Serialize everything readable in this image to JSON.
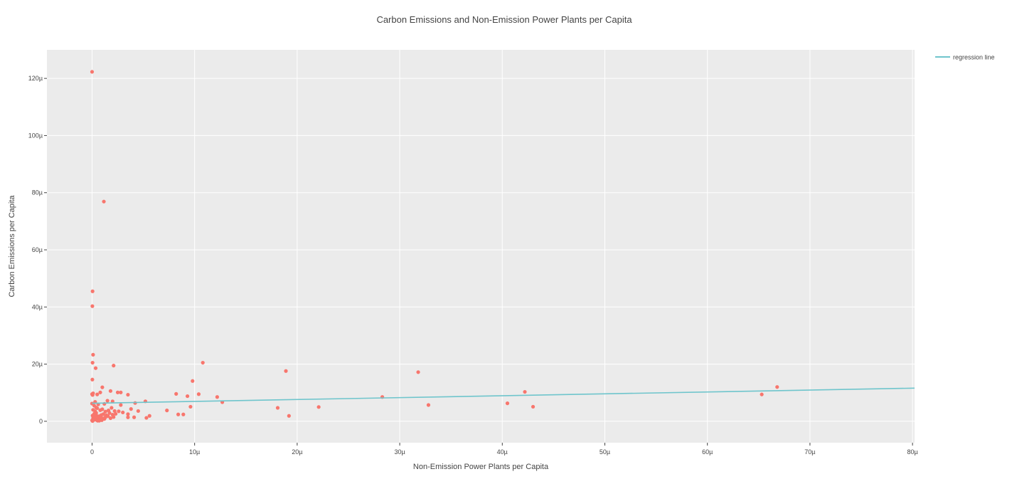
{
  "chart_data": {
    "type": "scatter",
    "title": "Carbon Emissions and Non-Emission Power Plants per Capita",
    "xlabel": "Non-Emission Power Plants per Capita",
    "ylabel": "Carbon Emissions per Capita",
    "xlim": [
      -4.4,
      80.2
    ],
    "ylim": [
      -7.5,
      130
    ],
    "x_ticks": [
      0,
      10,
      20,
      30,
      40,
      50,
      60,
      70,
      80
    ],
    "x_tick_labels": [
      "0",
      "10µ",
      "20µ",
      "30µ",
      "40µ",
      "50µ",
      "60µ",
      "70µ",
      "80µ"
    ],
    "y_ticks": [
      0,
      20,
      40,
      60,
      80,
      100,
      120
    ],
    "y_tick_labels": [
      "0",
      "20µ",
      "40µ",
      "60µ",
      "80µ",
      "100µ",
      "120µ"
    ],
    "grid": true,
    "legend_position": "top-right",
    "colors": {
      "points": "#f8766d",
      "regression": "#6fc5cc",
      "plot_bg": "#ebebeb",
      "grid": "#ffffff"
    },
    "series": [
      {
        "kind": "points",
        "x": [
          0.0,
          0.05,
          0.03,
          0.1,
          0.05,
          0.03,
          1.15,
          0.35,
          2.1,
          0.0,
          0.05,
          0.1,
          0.0,
          0.3,
          0.5,
          0.8,
          1.0,
          1.8,
          2.5,
          2.8,
          3.5,
          0.2,
          0.4,
          0.6,
          1.2,
          1.5,
          2.0,
          2.8,
          4.2,
          5.2,
          0.1,
          0.3,
          0.5,
          0.8,
          1.0,
          1.3,
          1.6,
          1.9,
          2.2,
          2.6,
          3.0,
          3.5,
          3.8,
          4.5,
          0.05,
          0.2,
          0.4,
          0.7,
          0.9,
          1.1,
          1.4,
          1.7,
          2.0,
          2.3,
          0.1,
          0.25,
          0.45,
          0.6,
          0.85,
          1.05,
          1.3,
          1.55,
          1.8,
          2.1,
          0.0,
          0.15,
          0.35,
          0.55,
          0.75,
          0.95,
          1.2,
          0.05,
          0.3,
          0.5,
          0.7,
          3.5,
          4.1,
          5.3,
          5.6,
          7.3,
          8.2,
          8.4,
          8.9,
          9.3,
          9.6,
          9.8,
          10.4,
          10.8,
          12.2,
          12.7,
          18.1,
          18.9,
          19.2,
          22.1,
          28.3,
          31.8,
          32.8,
          40.5,
          42.2,
          43.0,
          65.3,
          66.8
        ],
        "y": [
          122.3,
          45.5,
          40.3,
          23.3,
          20.5,
          14.6,
          76.9,
          18.6,
          19.5,
          9.5,
          9.2,
          9.8,
          6.2,
          6.8,
          9.4,
          10.1,
          11.9,
          10.6,
          10.1,
          10.1,
          9.3,
          5.5,
          4.8,
          5.9,
          6.1,
          7.2,
          7.0,
          5.7,
          6.4,
          7.0,
          4.0,
          3.5,
          4.6,
          3.9,
          4.2,
          3.4,
          3.8,
          4.7,
          3.6,
          3.5,
          3.1,
          2.5,
          4.3,
          3.6,
          2.0,
          2.6,
          2.9,
          1.8,
          2.2,
          2.5,
          2.1,
          2.9,
          2.3,
          2.6,
          1.1,
          1.5,
          1.9,
          1.2,
          1.6,
          1.0,
          1.4,
          1.8,
          1.1,
          1.5,
          0.3,
          0.5,
          0.7,
          0.2,
          0.9,
          0.4,
          0.8,
          0.1,
          0.6,
          0.3,
          0.2,
          1.4,
          1.4,
          1.2,
          1.9,
          3.8,
          9.6,
          2.4,
          2.4,
          8.8,
          5.1,
          14.1,
          9.5,
          20.5,
          8.5,
          6.7,
          4.7,
          17.6,
          1.9,
          5.0,
          8.5,
          17.2,
          5.7,
          6.3,
          10.3,
          5.1,
          9.4,
          12.0
        ]
      },
      {
        "kind": "line",
        "name": "regression line",
        "x": [
          0,
          80.2
        ],
        "y": [
          6.3,
          11.6
        ]
      }
    ]
  }
}
